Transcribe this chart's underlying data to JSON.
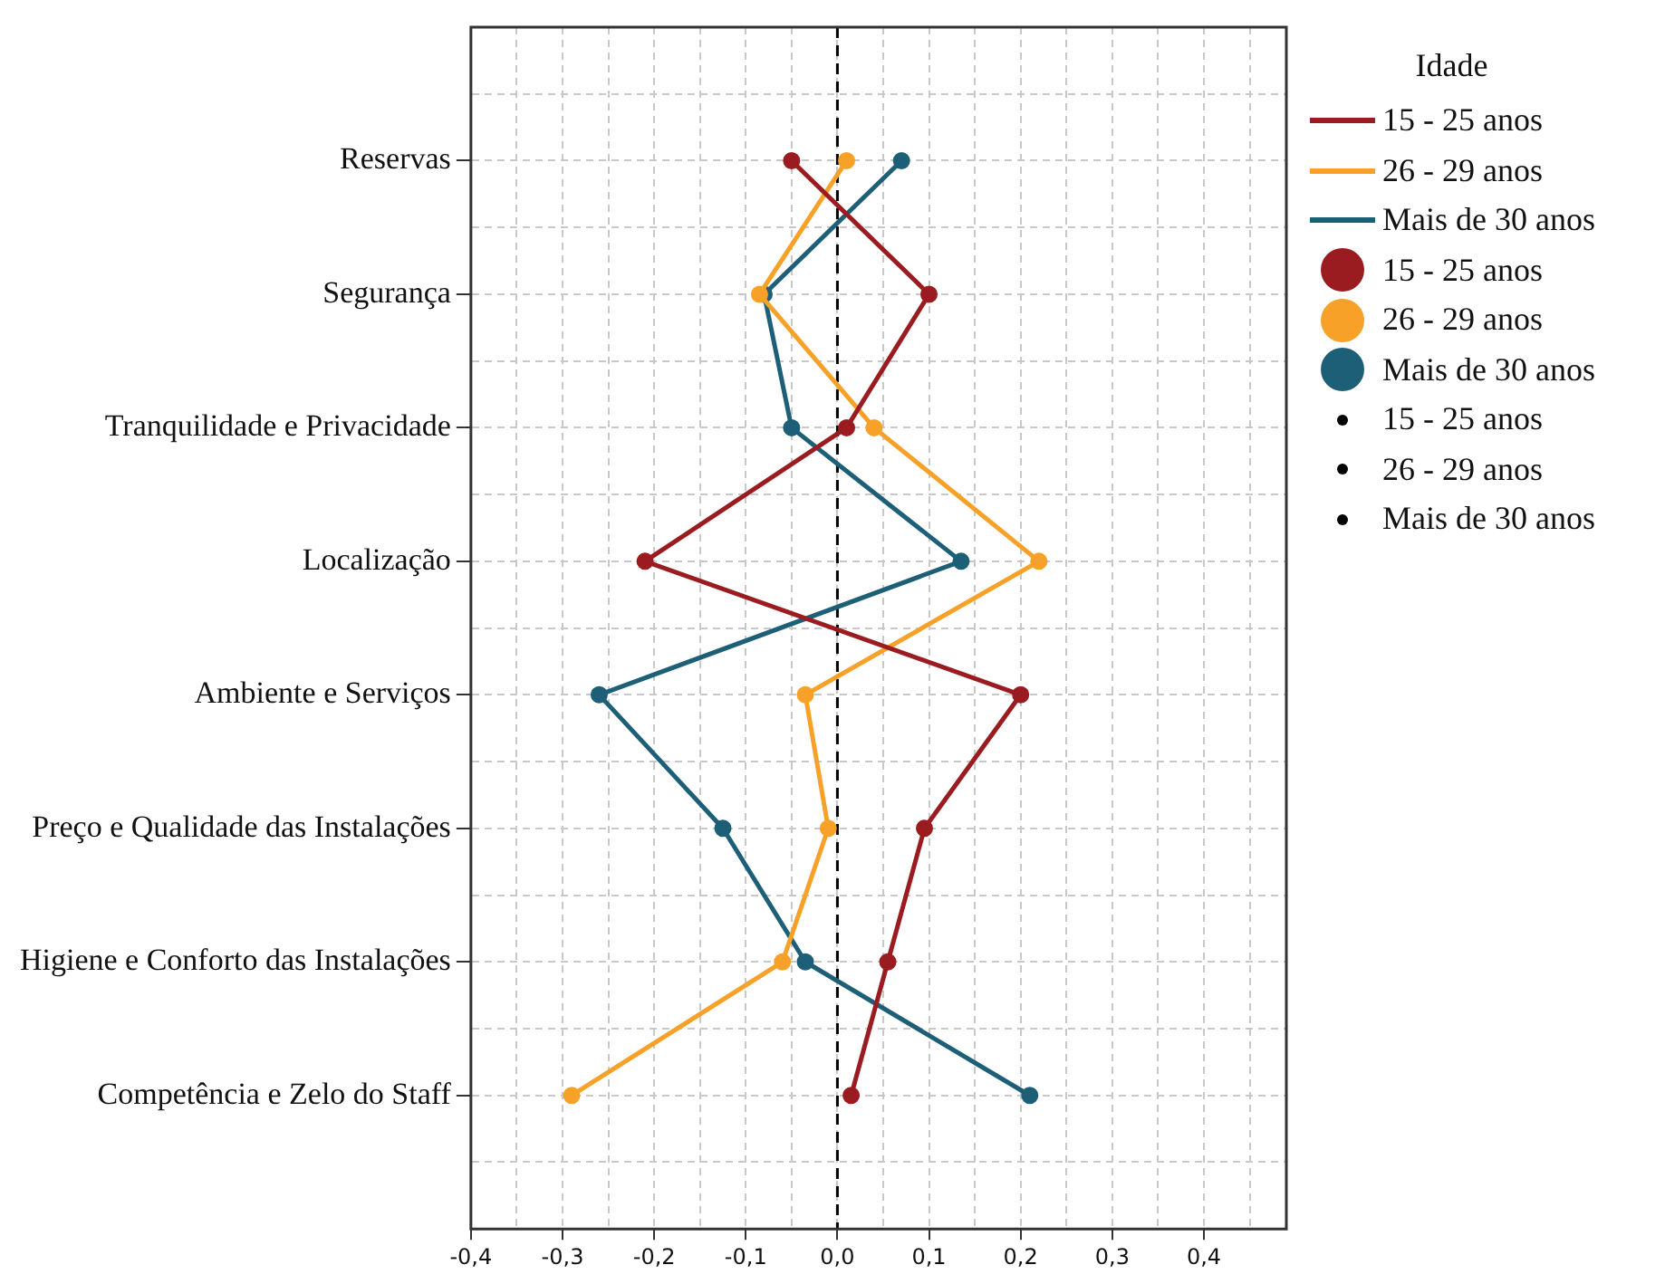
{
  "chart_data": {
    "type": "line",
    "orientation": "horizontal",
    "legend_title": "Idade",
    "categories": [
      "Reservas",
      "Segurança",
      "Tranquilidade e Privacidade",
      "Localização",
      "Ambiente e Serviços",
      "Preço e Qualidade das Instalações",
      "Higiene e Conforto das Instalações",
      "Competência e Zelo do Staff"
    ],
    "series": [
      {
        "name": "15 - 25 anos",
        "color": "#9b1c20",
        "values": [
          -0.05,
          0.1,
          0.01,
          -0.21,
          0.2,
          0.095,
          0.055,
          0.015
        ]
      },
      {
        "name": "26 - 29 anos",
        "color": "#f7a128",
        "values": [
          0.01,
          -0.085,
          0.04,
          0.22,
          -0.035,
          -0.01,
          -0.06,
          -0.29
        ]
      },
      {
        "name": "Mais de 30 anos",
        "color": "#1e5f78",
        "values": [
          0.07,
          -0.08,
          -0.05,
          0.135,
          -0.26,
          -0.125,
          -0.035,
          0.21
        ]
      }
    ],
    "xlim": [
      -0.4,
      0.49
    ],
    "xticks": [
      {
        "value": -0.4,
        "label": "-0,4"
      },
      {
        "value": -0.35,
        "label": null
      },
      {
        "value": -0.3,
        "label": "-0,3"
      },
      {
        "value": -0.25,
        "label": null
      },
      {
        "value": -0.2,
        "label": "-0,2"
      },
      {
        "value": -0.15,
        "label": null
      },
      {
        "value": -0.1,
        "label": "-0,1"
      },
      {
        "value": -0.05,
        "label": null
      },
      {
        "value": 0,
        "label": "0,0"
      },
      {
        "value": 0.05,
        "label": null
      },
      {
        "value": 0.1,
        "label": "0,1"
      },
      {
        "value": 0.15,
        "label": null
      },
      {
        "value": 0.2,
        "label": "0,2"
      },
      {
        "value": 0.25,
        "label": null
      },
      {
        "value": 0.3,
        "label": "0,3"
      },
      {
        "value": 0.35,
        "label": null
      },
      {
        "value": 0.4,
        "label": "0,4"
      },
      {
        "value": 0.45,
        "label": null
      }
    ],
    "ref_lines": [
      {
        "axis": "x",
        "value": 0,
        "color": "#000000",
        "line_style": "dashed"
      }
    ],
    "grid": true,
    "legend": "top right",
    "marker": "circle",
    "line_style": "solid"
  }
}
